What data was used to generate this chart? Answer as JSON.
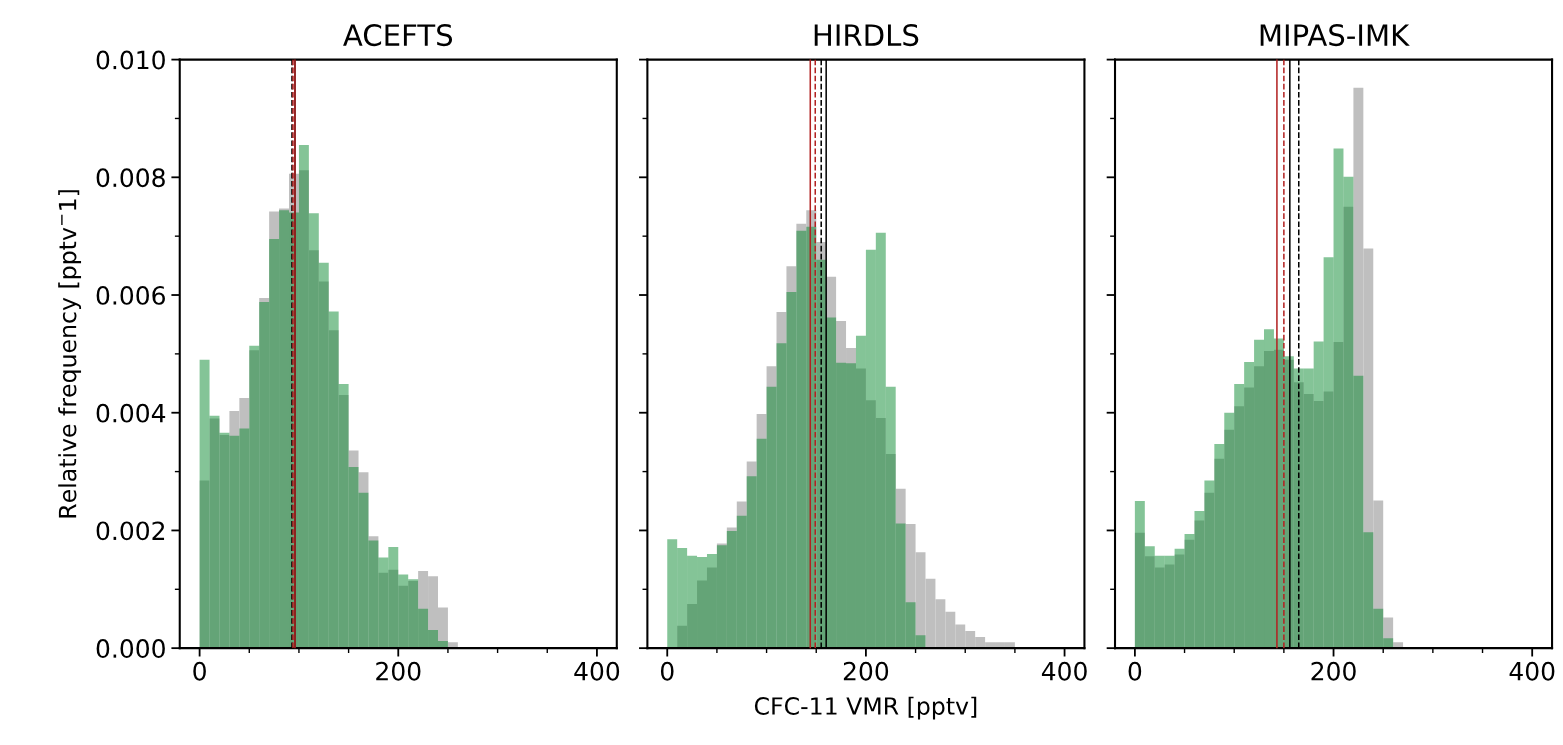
{
  "chart_data": [
    {
      "type": "histogram",
      "title": "ACEFTS",
      "ylabel": "Relative frequency [pptv$^{−}$1]",
      "bins": [
        0,
        10,
        20,
        30,
        40,
        50,
        60,
        70,
        80,
        90,
        100,
        110,
        120,
        130,
        140,
        150,
        160,
        170,
        180,
        190,
        200,
        210,
        220,
        230,
        240,
        250,
        260,
        270,
        280,
        290,
        300,
        310,
        320,
        330,
        340,
        350,
        360,
        370,
        380,
        390,
        400
      ],
      "series": [
        {
          "color": "#bfbfbf",
          "values": [
            0.00285,
            0.0039,
            0.00362,
            0.00403,
            0.00425,
            0.00506,
            0.00595,
            0.00742,
            0.00747,
            0.00806,
            0.00812,
            0.00676,
            0.00623,
            0.0054,
            0.0043,
            0.00336,
            0.00299,
            0.0019,
            0.00128,
            0.00133,
            0.00106,
            0.00114,
            0.00131,
            0.00122,
            0.00069,
            0.0001,
            0,
            0,
            0,
            0,
            0,
            0,
            0,
            0,
            0,
            0,
            0,
            0,
            0,
            0
          ]
        },
        {
          "color": "#0a8a30",
          "values": [
            0.0049,
            0.00395,
            0.00366,
            0.00361,
            0.00373,
            0.00514,
            0.00588,
            0.00695,
            0.00744,
            0.0074,
            0.00855,
            0.00739,
            0.00655,
            0.00572,
            0.00449,
            0.00308,
            0.00264,
            0.00183,
            0.00154,
            0.00172,
            0.00125,
            0.00117,
            0.00067,
            0.00031,
            0.00012,
            0,
            0,
            0,
            0,
            0,
            0,
            0,
            0,
            0,
            0,
            0,
            0,
            0,
            0,
            0
          ]
        }
      ],
      "ref_lines": [
        {
          "axis": "x",
          "value": 96,
          "color": "#000000",
          "line_style": "solid"
        },
        {
          "axis": "x",
          "value": 96,
          "color": "#b22222",
          "line_style": "solid"
        },
        {
          "axis": "x",
          "value": 93,
          "color": "#000000",
          "line_style": "dashed"
        },
        {
          "axis": "x",
          "value": 94,
          "color": "#b22222",
          "line_style": "dashed"
        }
      ],
      "xlim": [
        -20,
        420
      ],
      "xticks": [
        0,
        200,
        400
      ],
      "ylim": [
        0,
        0.01
      ],
      "yticks": [
        {
          "value": 0,
          "label": "0.000"
        },
        {
          "value": 0.002,
          "label": "0.002"
        },
        {
          "value": 0.004,
          "label": "0.004"
        },
        {
          "value": 0.006,
          "label": "0.006"
        },
        {
          "value": 0.008,
          "label": "0.008"
        },
        {
          "value": 0.01,
          "label": "0.010"
        }
      ]
    },
    {
      "type": "histogram",
      "title": "HIRDLS",
      "xlabel": "CFC-11 VMR [pptv]",
      "bins": [
        0,
        10,
        20,
        30,
        40,
        50,
        60,
        70,
        80,
        90,
        100,
        110,
        120,
        130,
        140,
        150,
        160,
        170,
        180,
        190,
        200,
        210,
        220,
        230,
        240,
        250,
        260,
        270,
        280,
        290,
        300,
        310,
        320,
        330,
        340,
        350,
        360,
        370,
        380,
        390,
        400
      ],
      "series": [
        {
          "color": "#bfbfbf",
          "values": [
            0,
            0.00038,
            0.00075,
            0.00115,
            0.00137,
            0.00178,
            0.00205,
            0.00249,
            0.00317,
            0.00398,
            0.00479,
            0.00571,
            0.00649,
            0.00721,
            0.00744,
            0.0069,
            0.00631,
            0.00556,
            0.0051,
            0.00475,
            0.00421,
            0.00391,
            0.0033,
            0.00271,
            0.00211,
            0.00163,
            0.00118,
            0.00083,
            0.00062,
            0.0004,
            0.00029,
            0.00019,
            0.0001,
            0.0001,
            0.0001,
            0,
            0,
            0,
            0,
            0
          ]
        },
        {
          "color": "#0a8a30",
          "values": [
            0.00185,
            0.0017,
            0.00157,
            0.00155,
            0.0016,
            0.00175,
            0.00199,
            0.00225,
            0.00292,
            0.00356,
            0.00444,
            0.00518,
            0.00605,
            0.00709,
            0.00716,
            0.0066,
            0.00562,
            0.00485,
            0.00484,
            0.00531,
            0.00677,
            0.00706,
            0.00444,
            0.00212,
            0.00078,
            0.00022,
            0,
            0,
            0,
            0,
            0,
            0,
            0,
            0,
            0,
            0,
            0,
            0,
            0,
            0
          ]
        }
      ],
      "ref_lines": [
        {
          "axis": "x",
          "value": 144,
          "color": "#b22222",
          "line_style": "solid"
        },
        {
          "axis": "x",
          "value": 149,
          "color": "#b22222",
          "line_style": "dashed"
        },
        {
          "axis": "x",
          "value": 155,
          "color": "#000000",
          "line_style": "dashed"
        },
        {
          "axis": "x",
          "value": 160,
          "color": "#000000",
          "line_style": "solid"
        }
      ],
      "xlim": [
        -20,
        420
      ],
      "xticks": [
        0,
        200,
        400
      ],
      "ylim": [
        0,
        0.01
      ],
      "yticks": [
        0,
        0.002,
        0.004,
        0.006,
        0.008,
        0.01
      ],
      "tick_labels": "x"
    },
    {
      "type": "histogram",
      "title": "MIPAS-IMK",
      "bins": [
        0,
        10,
        20,
        30,
        40,
        50,
        60,
        70,
        80,
        90,
        100,
        110,
        120,
        130,
        140,
        150,
        160,
        170,
        180,
        190,
        200,
        210,
        220,
        230,
        240,
        250,
        260,
        270,
        280,
        290,
        300,
        310,
        320,
        330,
        340,
        350,
        360,
        370,
        380,
        390,
        400
      ],
      "series": [
        {
          "color": "#bfbfbf",
          "values": [
            0.00196,
            0.00156,
            0.00137,
            0.00142,
            0.00159,
            0.00184,
            0.00217,
            0.00264,
            0.00322,
            0.00371,
            0.00411,
            0.00443,
            0.00479,
            0.00505,
            0.00507,
            0.0049,
            0.00452,
            0.00432,
            0.0042,
            0.00436,
            0.0052,
            0.0075,
            0.00952,
            0.00679,
            0.00251,
            0.00052,
            0.0001,
            0,
            0,
            0,
            0,
            0,
            0,
            0,
            0,
            0,
            0,
            0,
            0,
            0
          ]
        },
        {
          "color": "#0a8a30",
          "values": [
            0.0025,
            0.00173,
            0.00157,
            0.00157,
            0.00169,
            0.00194,
            0.00233,
            0.00285,
            0.00347,
            0.004,
            0.00449,
            0.00486,
            0.00524,
            0.00542,
            0.00526,
            0.00496,
            0.00475,
            0.00475,
            0.00521,
            0.00664,
            0.00849,
            0.00801,
            0.00463,
            0.00197,
            0.00067,
            0.00017,
            0,
            0,
            0,
            0,
            0,
            0,
            0,
            0,
            0,
            0,
            0,
            0,
            0,
            0
          ]
        }
      ],
      "ref_lines": [
        {
          "axis": "x",
          "value": 143,
          "color": "#b22222",
          "line_style": "solid"
        },
        {
          "axis": "x",
          "value": 150,
          "color": "#b22222",
          "line_style": "dashed"
        },
        {
          "axis": "x",
          "value": 156,
          "color": "#000000",
          "line_style": "solid"
        },
        {
          "axis": "x",
          "value": 165,
          "color": "#000000",
          "line_style": "dashed"
        }
      ],
      "xlim": [
        -20,
        420
      ],
      "xticks": [
        0,
        200,
        400
      ],
      "ylim": [
        0,
        0.01
      ],
      "yticks": [
        0,
        0.002,
        0.004,
        0.006,
        0.008,
        0.01
      ],
      "tick_labels": "x"
    }
  ]
}
